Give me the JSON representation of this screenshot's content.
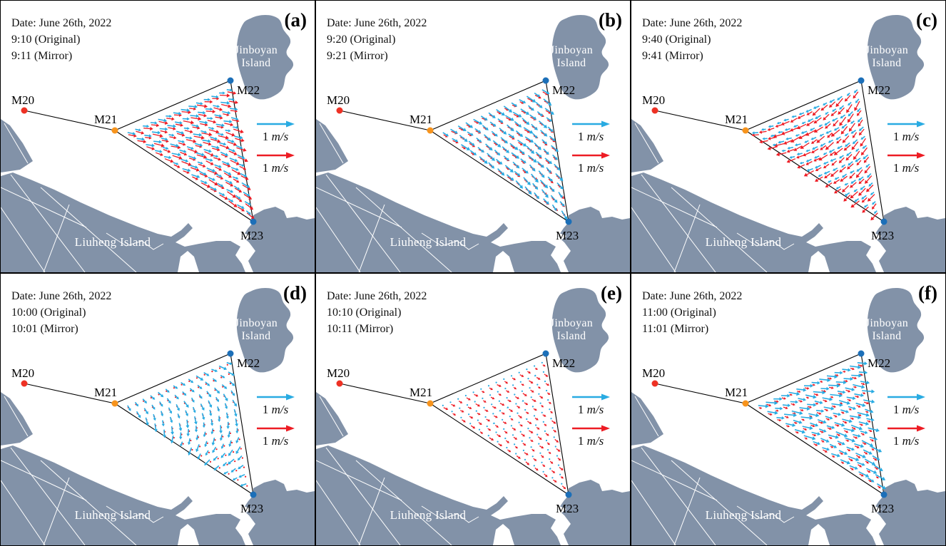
{
  "figure": {
    "date_label": "Date: June 26th, 2022",
    "panels": [
      {
        "label": "(a)",
        "original": "9:10 (Original)",
        "mirror": "9:11 (Mirror)",
        "flow": {
          "original": {
            "dir": 15,
            "grad_x": 0.05,
            "grad_y": 0.18,
            "len": 11
          },
          "mirror": {
            "dir": 18,
            "grad_x": 0.05,
            "grad_y": 0.18,
            "len": 13
          }
        }
      },
      {
        "label": "(b)",
        "original": "9:20 (Original)",
        "mirror": "9:21 (Mirror)",
        "flow": {
          "original": {
            "dir": 40,
            "grad_x": 0.06,
            "grad_y": 0.1,
            "len": 13
          },
          "mirror": {
            "dir": 32,
            "grad_x": 0.05,
            "grad_y": 0.08,
            "len": 8
          }
        }
      },
      {
        "label": "(c)",
        "original": "9:40 (Original)",
        "mirror": "9:41 (Mirror)",
        "flow": {
          "original": {
            "dir": 152,
            "grad_x": -0.28,
            "grad_y": 0.06,
            "len": 8
          },
          "mirror": {
            "dir": 142,
            "grad_x": -0.3,
            "grad_y": 0.1,
            "len": 13
          }
        }
      },
      {
        "label": "(d)",
        "original": "10:00 (Original)",
        "mirror": "10:01 (Mirror)",
        "flow": {
          "original": {
            "dir": 80,
            "grad_x": 0.1,
            "grad_y": 0.85,
            "len": 10
          },
          "mirror": {
            "dir": 40,
            "grad_x": 0,
            "grad_y": 0,
            "len": 2
          }
        }
      },
      {
        "label": "(e)",
        "original": "10:10 (Original)",
        "mirror": "10:11 (Mirror)",
        "flow": {
          "original": {
            "dir": 150,
            "grad_x": 0.03,
            "grad_y": 0.05,
            "len": 2.5
          },
          "mirror": {
            "dir": 33,
            "grad_x": 0.03,
            "grad_y": 0.05,
            "len": 6
          }
        }
      },
      {
        "label": "(f)",
        "original": "11:00 (Original)",
        "mirror": "11:01 (Mirror)",
        "flow": {
          "original": {
            "dir": 14,
            "grad_x": 0.06,
            "grad_y": 0.16,
            "len": 15
          },
          "mirror": {
            "dir": 22,
            "grad_x": 0.06,
            "grad_y": 0.12,
            "len": 6
          }
        }
      }
    ],
    "stations": [
      {
        "name": "M20",
        "color": "#ee3124"
      },
      {
        "name": "M21",
        "color": "#f7941d"
      },
      {
        "name": "M22",
        "color": "#1c6fb8"
      },
      {
        "name": "M23",
        "color": "#1c6fb8"
      }
    ],
    "islands": {
      "jinboyan_lines": [
        "Jinboyan",
        "Island"
      ],
      "liuheng": "Liuheng Island"
    },
    "legend": {
      "original_value": "1",
      "original_unit": "m/s",
      "original_color": "#29abe2",
      "mirror_value": "1",
      "mirror_unit": "m/s",
      "mirror_color": "#ed1c24"
    },
    "colors": {
      "land": "#8292a8",
      "sea": "#ffffff",
      "line": "#000000"
    }
  }
}
